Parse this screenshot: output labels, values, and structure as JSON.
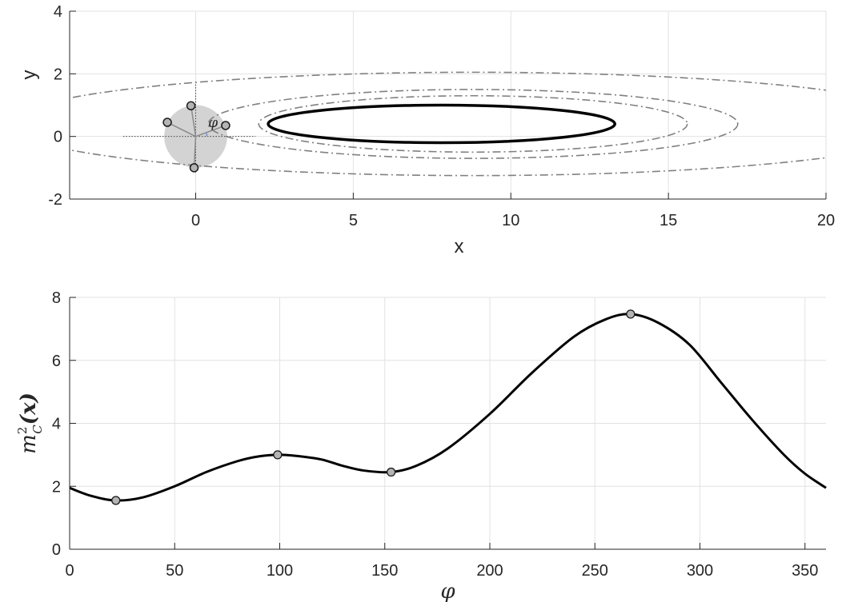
{
  "chart_data": [
    {
      "type": "line",
      "xlabel": "x",
      "ylabel": "y",
      "xlim": [
        -4,
        20
      ],
      "ylim": [
        -2,
        4
      ],
      "xticks": [
        0,
        5,
        10,
        15,
        20
      ],
      "yticks": [
        -2,
        0,
        2,
        4
      ],
      "grid": true,
      "ellipses": [
        {
          "center": [
            7.8,
            0.4
          ],
          "semi_x": 5.5,
          "semi_y": 0.6,
          "style": "solid",
          "color": "#000000"
        },
        {
          "center": [
            8.8,
            0.4
          ],
          "semi_x": 6.8,
          "semi_y": 0.9,
          "style": "dashdot",
          "color": "#808080"
        },
        {
          "center": [
            8.8,
            0.4
          ],
          "semi_x": 8.4,
          "semi_y": 1.1,
          "style": "dashdot",
          "color": "#808080"
        },
        {
          "center": [
            8.8,
            0.4
          ],
          "semi_x": 14.8,
          "semi_y": 1.65,
          "style": "dashdot",
          "color": "#808080"
        }
      ],
      "disk": {
        "center": [
          0,
          0
        ],
        "radius": 1,
        "color": "#d3d3d3"
      },
      "angle_label": "φ",
      "points": [
        {
          "x": -0.15,
          "y": 0.98
        },
        {
          "x": -0.9,
          "y": 0.45
        },
        {
          "x": 0.95,
          "y": 0.35
        },
        {
          "x": -0.05,
          "y": -1.0
        }
      ]
    },
    {
      "type": "line",
      "xlabel": "φ",
      "ylabel": "m²_C(x)",
      "ylabel_parts": {
        "base": "m",
        "sup": "2",
        "sub": "C",
        "arg": "(x)"
      },
      "xlim": [
        0,
        360
      ],
      "ylim": [
        0,
        8
      ],
      "xticks": [
        0,
        50,
        100,
        150,
        200,
        250,
        300,
        350
      ],
      "yticks": [
        0,
        2,
        4,
        6,
        8
      ],
      "grid": true,
      "series": [
        {
          "x": [
            0,
            10,
            22,
            35,
            50,
            65,
            80,
            90,
            100,
            110,
            120,
            130,
            140,
            153,
            165,
            180,
            200,
            220,
            240,
            255,
            267,
            280,
            295,
            310,
            325,
            340,
            350,
            360
          ],
          "y": [
            1.95,
            1.7,
            1.55,
            1.65,
            2.0,
            2.45,
            2.8,
            2.95,
            3.0,
            2.95,
            2.85,
            2.65,
            2.5,
            2.45,
            2.65,
            3.2,
            4.3,
            5.6,
            6.75,
            7.3,
            7.47,
            7.2,
            6.5,
            5.3,
            4.1,
            3.0,
            2.4,
            1.95
          ]
        }
      ],
      "markers": [
        {
          "x": 22,
          "y": 1.55
        },
        {
          "x": 99,
          "y": 3.0
        },
        {
          "x": 153,
          "y": 2.45
        },
        {
          "x": 267,
          "y": 7.47
        }
      ]
    }
  ]
}
